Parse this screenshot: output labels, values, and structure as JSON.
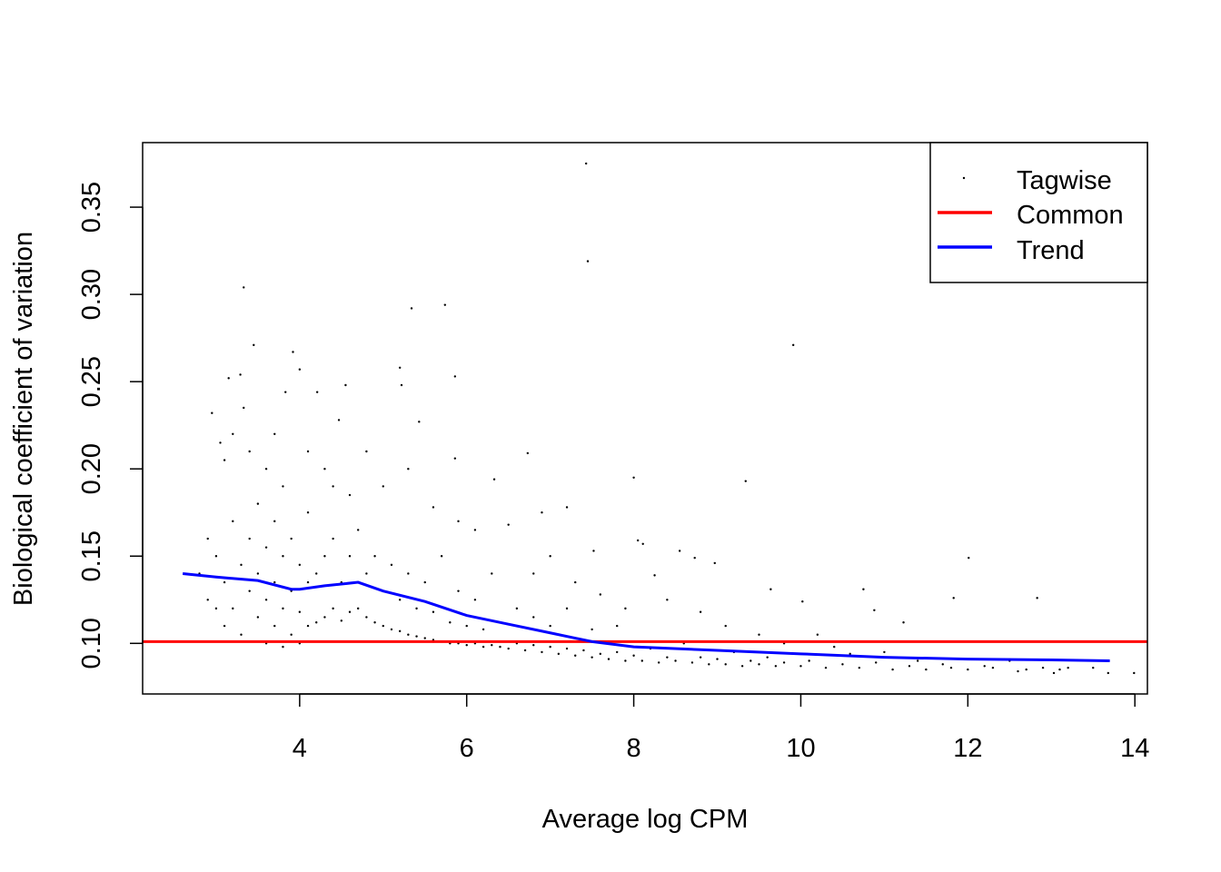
{
  "chart_data": {
    "type": "scatter",
    "title": "",
    "xlabel": "Average log CPM",
    "ylabel": "Biological coefficient of variation",
    "xlim": [
      2.12,
      14.15
    ],
    "ylim": [
      0.071,
      0.387
    ],
    "xticks": [
      4,
      6,
      8,
      10,
      12,
      14
    ],
    "xtick_labels": [
      "4",
      "6",
      "8",
      "10",
      "12",
      "14"
    ],
    "yticks": [
      0.1,
      0.15,
      0.2,
      0.25,
      0.3,
      0.35
    ],
    "ytick_labels": [
      "0.10",
      "0.15",
      "0.20",
      "0.25",
      "0.30",
      "0.35"
    ],
    "grid": false,
    "legend": {
      "placement": "top-right",
      "entries": [
        {
          "label": "Tagwise",
          "kind": "point",
          "color": "#000000"
        },
        {
          "label": "Common",
          "kind": "line",
          "color": "#ff0000"
        },
        {
          "label": "Trend",
          "kind": "line",
          "color": "#0000ff"
        }
      ]
    },
    "series": [
      {
        "name": "Tagwise",
        "kind": "points",
        "color": "#000000",
        "points": [
          [
            7.43,
            0.375
          ],
          [
            7.45,
            0.319
          ],
          [
            3.33,
            0.304
          ],
          [
            5.74,
            0.294
          ],
          [
            5.34,
            0.292
          ],
          [
            9.91,
            0.271
          ],
          [
            3.45,
            0.271
          ],
          [
            3.92,
            0.267
          ],
          [
            4.0,
            0.257
          ],
          [
            5.2,
            0.258
          ],
          [
            5.86,
            0.253
          ],
          [
            3.29,
            0.254
          ],
          [
            3.15,
            0.252
          ],
          [
            5.22,
            0.248
          ],
          [
            4.55,
            0.248
          ],
          [
            4.21,
            0.244
          ],
          [
            3.83,
            0.244
          ],
          [
            3.33,
            0.235
          ],
          [
            5.43,
            0.227
          ],
          [
            4.47,
            0.228
          ],
          [
            5.86,
            0.206
          ],
          [
            6.73,
            0.209
          ],
          [
            8.0,
            0.195
          ],
          [
            9.34,
            0.193
          ],
          [
            6.33,
            0.194
          ],
          [
            12.01,
            0.149
          ],
          [
            12.83,
            0.126
          ],
          [
            11.83,
            0.126
          ],
          [
            10.02,
            0.124
          ],
          [
            8.05,
            0.159
          ],
          [
            8.11,
            0.157
          ],
          [
            7.52,
            0.153
          ],
          [
            8.55,
            0.153
          ],
          [
            8.73,
            0.149
          ],
          [
            8.97,
            0.146
          ],
          [
            8.25,
            0.139
          ],
          [
            9.64,
            0.131
          ],
          [
            11.23,
            0.112
          ],
          [
            10.75,
            0.131
          ],
          [
            10.88,
            0.119
          ],
          [
            10.59,
            0.094
          ],
          [
            13.99,
            0.083
          ],
          [
            13.68,
            0.083
          ],
          [
            13.03,
            0.083
          ],
          [
            2.95,
            0.232
          ],
          [
            3.05,
            0.215
          ],
          [
            3.1,
            0.205
          ],
          [
            3.2,
            0.22
          ],
          [
            3.4,
            0.21
          ],
          [
            3.6,
            0.2
          ],
          [
            3.7,
            0.22
          ],
          [
            3.8,
            0.19
          ],
          [
            4.1,
            0.21
          ],
          [
            4.3,
            0.2
          ],
          [
            4.4,
            0.19
          ],
          [
            4.6,
            0.185
          ],
          [
            4.8,
            0.21
          ],
          [
            5.0,
            0.19
          ],
          [
            5.3,
            0.2
          ],
          [
            5.6,
            0.178
          ],
          [
            5.9,
            0.17
          ],
          [
            6.1,
            0.165
          ],
          [
            6.5,
            0.168
          ],
          [
            6.9,
            0.175
          ],
          [
            7.2,
            0.178
          ],
          [
            7.0,
            0.15
          ],
          [
            6.8,
            0.14
          ],
          [
            7.3,
            0.135
          ],
          [
            7.6,
            0.128
          ],
          [
            7.9,
            0.12
          ],
          [
            8.4,
            0.125
          ],
          [
            8.8,
            0.118
          ],
          [
            9.1,
            0.11
          ],
          [
            9.5,
            0.105
          ],
          [
            9.8,
            0.1
          ],
          [
            10.2,
            0.105
          ],
          [
            10.4,
            0.098
          ],
          [
            11.0,
            0.095
          ],
          [
            11.4,
            0.09
          ],
          [
            11.7,
            0.088
          ],
          [
            12.2,
            0.087
          ],
          [
            12.5,
            0.09
          ],
          [
            12.7,
            0.085
          ],
          [
            13.2,
            0.086
          ],
          [
            2.8,
            0.14
          ],
          [
            2.9,
            0.125
          ],
          [
            2.9,
            0.16
          ],
          [
            3.0,
            0.12
          ],
          [
            3.0,
            0.15
          ],
          [
            3.1,
            0.11
          ],
          [
            3.1,
            0.135
          ],
          [
            3.2,
            0.17
          ],
          [
            3.2,
            0.12
          ],
          [
            3.3,
            0.145
          ],
          [
            3.3,
            0.105
          ],
          [
            3.4,
            0.13
          ],
          [
            3.4,
            0.16
          ],
          [
            3.5,
            0.115
          ],
          [
            3.5,
            0.14
          ],
          [
            3.5,
            0.18
          ],
          [
            3.6,
            0.1
          ],
          [
            3.6,
            0.125
          ],
          [
            3.6,
            0.155
          ],
          [
            3.7,
            0.11
          ],
          [
            3.7,
            0.135
          ],
          [
            3.7,
            0.17
          ],
          [
            3.8,
            0.098
          ],
          [
            3.8,
            0.12
          ],
          [
            3.8,
            0.15
          ],
          [
            3.9,
            0.105
          ],
          [
            3.9,
            0.13
          ],
          [
            3.9,
            0.16
          ],
          [
            4.0,
            0.1
          ],
          [
            4.0,
            0.118
          ],
          [
            4.0,
            0.145
          ],
          [
            4.1,
            0.11
          ],
          [
            4.1,
            0.135
          ],
          [
            4.1,
            0.175
          ],
          [
            4.2,
            0.112
          ],
          [
            4.2,
            0.14
          ],
          [
            4.3,
            0.115
          ],
          [
            4.3,
            0.15
          ],
          [
            4.4,
            0.12
          ],
          [
            4.4,
            0.16
          ],
          [
            4.5,
            0.113
          ],
          [
            4.5,
            0.135
          ],
          [
            4.6,
            0.118
          ],
          [
            4.6,
            0.15
          ],
          [
            4.7,
            0.12
          ],
          [
            4.7,
            0.165
          ],
          [
            4.8,
            0.115
          ],
          [
            4.8,
            0.14
          ],
          [
            4.9,
            0.112
          ],
          [
            4.9,
            0.15
          ],
          [
            5.0,
            0.11
          ],
          [
            5.0,
            0.13
          ],
          [
            5.1,
            0.108
          ],
          [
            5.1,
            0.145
          ],
          [
            5.2,
            0.107
          ],
          [
            5.2,
            0.125
          ],
          [
            5.3,
            0.105
          ],
          [
            5.3,
            0.14
          ],
          [
            5.4,
            0.104
          ],
          [
            5.4,
            0.12
          ],
          [
            5.5,
            0.103
          ],
          [
            5.5,
            0.135
          ],
          [
            5.6,
            0.102
          ],
          [
            5.6,
            0.118
          ],
          [
            5.7,
            0.101
          ],
          [
            5.7,
            0.15
          ],
          [
            5.8,
            0.1
          ],
          [
            5.8,
            0.112
          ],
          [
            5.9,
            0.1
          ],
          [
            5.9,
            0.13
          ],
          [
            6.0,
            0.099
          ],
          [
            6.0,
            0.11
          ],
          [
            6.1,
            0.1
          ],
          [
            6.1,
            0.125
          ],
          [
            6.2,
            0.098
          ],
          [
            6.2,
            0.108
          ],
          [
            6.3,
            0.099
          ],
          [
            6.3,
            0.14
          ],
          [
            6.4,
            0.098
          ],
          [
            6.4,
            0.112
          ],
          [
            6.5,
            0.097
          ],
          [
            6.6,
            0.1
          ],
          [
            6.6,
            0.12
          ],
          [
            6.7,
            0.096
          ],
          [
            6.8,
            0.099
          ],
          [
            6.8,
            0.115
          ],
          [
            6.9,
            0.095
          ],
          [
            7.0,
            0.098
          ],
          [
            7.0,
            0.11
          ],
          [
            7.1,
            0.094
          ],
          [
            7.2,
            0.097
          ],
          [
            7.2,
            0.12
          ],
          [
            7.3,
            0.093
          ],
          [
            7.4,
            0.096
          ],
          [
            7.5,
            0.092
          ],
          [
            7.5,
            0.108
          ],
          [
            7.6,
            0.094
          ],
          [
            7.7,
            0.091
          ],
          [
            7.8,
            0.095
          ],
          [
            7.8,
            0.11
          ],
          [
            7.9,
            0.09
          ],
          [
            8.0,
            0.093
          ],
          [
            8.1,
            0.09
          ],
          [
            8.2,
            0.097
          ],
          [
            8.3,
            0.089
          ],
          [
            8.4,
            0.092
          ],
          [
            8.5,
            0.09
          ],
          [
            8.6,
            0.1
          ],
          [
            8.7,
            0.089
          ],
          [
            8.8,
            0.092
          ],
          [
            8.9,
            0.088
          ],
          [
            9.0,
            0.091
          ],
          [
            9.1,
            0.088
          ],
          [
            9.2,
            0.095
          ],
          [
            9.3,
            0.087
          ],
          [
            9.4,
            0.09
          ],
          [
            9.5,
            0.088
          ],
          [
            9.6,
            0.092
          ],
          [
            9.7,
            0.087
          ],
          [
            9.8,
            0.089
          ],
          [
            10.0,
            0.087
          ],
          [
            10.1,
            0.09
          ],
          [
            10.3,
            0.086
          ],
          [
            10.5,
            0.088
          ],
          [
            10.7,
            0.086
          ],
          [
            10.9,
            0.089
          ],
          [
            11.1,
            0.085
          ],
          [
            11.3,
            0.087
          ],
          [
            11.5,
            0.085
          ],
          [
            11.8,
            0.086
          ],
          [
            12.0,
            0.085
          ],
          [
            12.3,
            0.086
          ],
          [
            12.6,
            0.084
          ],
          [
            12.9,
            0.086
          ],
          [
            13.1,
            0.085
          ],
          [
            13.5,
            0.086
          ]
        ]
      },
      {
        "name": "Common",
        "kind": "hline",
        "color": "#ff0000",
        "y": 0.101
      },
      {
        "name": "Trend",
        "kind": "line",
        "color": "#0000ff",
        "points": [
          [
            2.6,
            0.14
          ],
          [
            3.0,
            0.138
          ],
          [
            3.5,
            0.136
          ],
          [
            3.9,
            0.131
          ],
          [
            4.0,
            0.131
          ],
          [
            4.3,
            0.133
          ],
          [
            4.7,
            0.135
          ],
          [
            5.0,
            0.13
          ],
          [
            5.5,
            0.124
          ],
          [
            6.0,
            0.116
          ],
          [
            6.5,
            0.111
          ],
          [
            7.0,
            0.106
          ],
          [
            7.5,
            0.101
          ],
          [
            8.0,
            0.098
          ],
          [
            9.0,
            0.096
          ],
          [
            10.0,
            0.094
          ],
          [
            11.0,
            0.092
          ],
          [
            12.0,
            0.091
          ],
          [
            13.0,
            0.0905
          ],
          [
            13.7,
            0.09
          ]
        ]
      }
    ]
  }
}
